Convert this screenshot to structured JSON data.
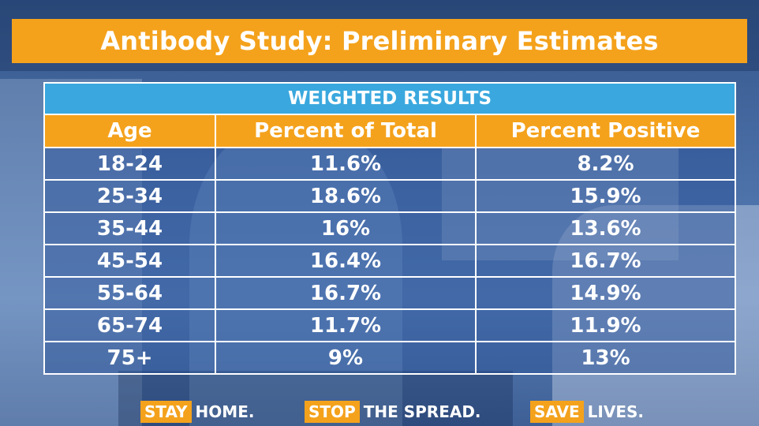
{
  "title": "Antibody Study: Preliminary Estimates",
  "table": {
    "banner": "WEIGHTED RESULTS",
    "headers": [
      "Age",
      "Percent of Total",
      "Percent Positive"
    ],
    "rows": [
      [
        "18-24",
        "11.6%",
        "8.2%"
      ],
      [
        "25-34",
        "18.6%",
        "15.9%"
      ],
      [
        "35-44",
        "16%",
        "13.6%"
      ],
      [
        "45-54",
        "16.4%",
        "16.7%"
      ],
      [
        "55-64",
        "16.7%",
        "14.9%"
      ],
      [
        "65-74",
        "11.7%",
        "11.9%"
      ],
      [
        "75+",
        "9%",
        "13%"
      ]
    ]
  },
  "footer": {
    "slogans": [
      {
        "highlight": "STAY",
        "rest": "HOME."
      },
      {
        "highlight": "STOP",
        "rest": "THE SPREAD."
      },
      {
        "highlight": "SAVE",
        "rest": "LIVES."
      }
    ]
  },
  "colors": {
    "orange": "#f4a21c",
    "blue_banner": "#3aa8de",
    "text": "#ffffff"
  }
}
